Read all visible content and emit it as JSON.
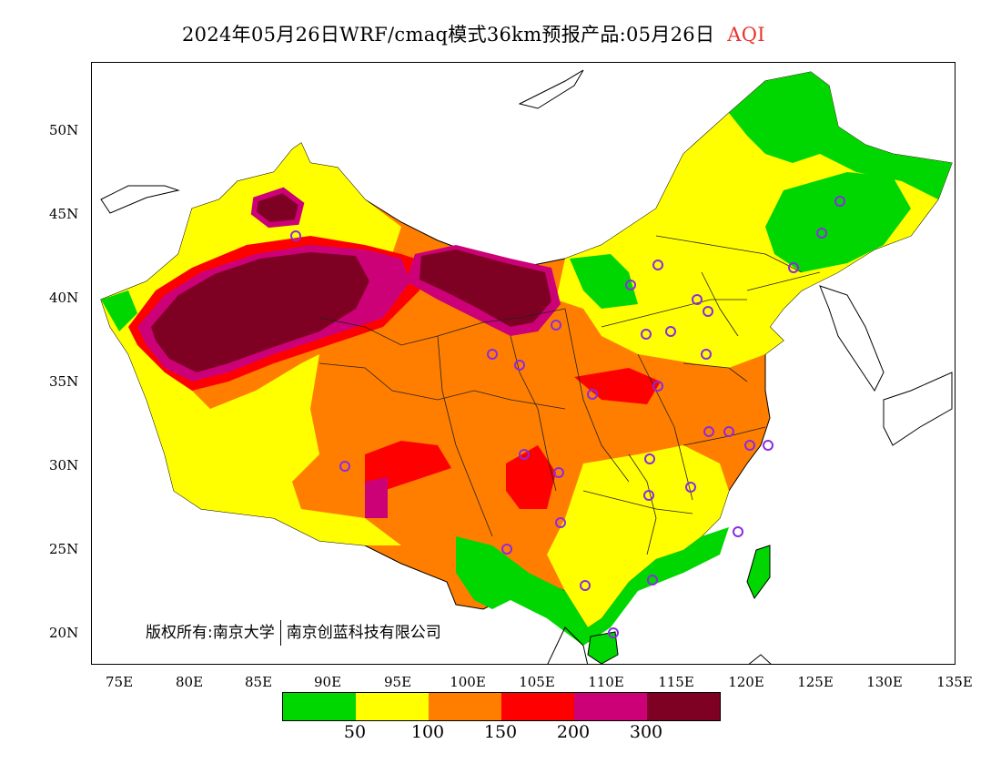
{
  "title": {
    "main": "2024年05月26日WRF/cmaq模式36km预报产品:05月26日",
    "variable": "AQI",
    "variable_color": "#e8332f"
  },
  "axes": {
    "lat_labels": [
      "50N",
      "45N",
      "40N",
      "35N",
      "30N",
      "25N",
      "20N"
    ],
    "lon_labels": [
      "75E",
      "80E",
      "85E",
      "90E",
      "95E",
      "100E",
      "105E",
      "110E",
      "115E",
      "120E",
      "125E",
      "130E",
      "135E"
    ]
  },
  "copyright": {
    "prefix": "版权所有:南京大学",
    "suffix": "南京创蓝科技有限公司"
  },
  "legend": {
    "colors": [
      "#00d700",
      "#ffff00",
      "#ff7e00",
      "#ff0000",
      "#cc0077",
      "#7e0023"
    ],
    "ticks": [
      "50",
      "100",
      "150",
      "200",
      "300"
    ]
  },
  "station_marker_color": "#8b2be2"
}
